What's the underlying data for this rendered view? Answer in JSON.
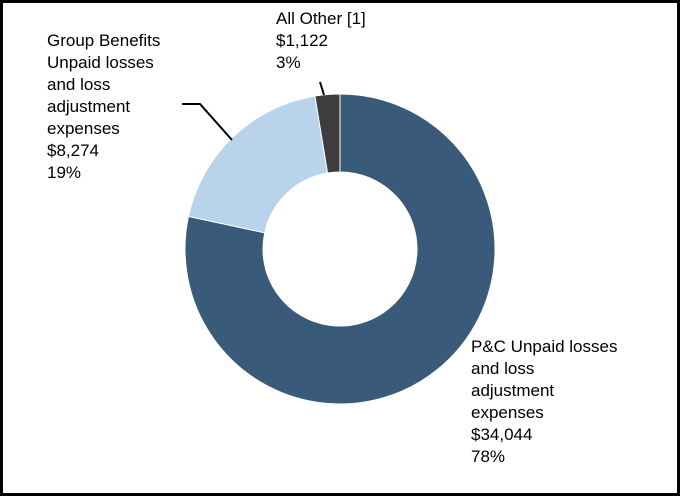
{
  "chart_data": {
    "type": "pie",
    "variant": "donut",
    "title": "",
    "slices": [
      {
        "name": "P&C Unpaid losses and loss adjustment expenses",
        "label_lines": [
          "P&C Unpaid losses",
          "and loss",
          "adjustment",
          "expenses"
        ],
        "value": 34044,
        "value_text": "$34,044",
        "percent": 78,
        "percent_text": "78%",
        "color": "#3a5a7a"
      },
      {
        "name": "Group Benefits Unpaid losses and loss adjustment expenses",
        "label_lines": [
          "Group Benefits",
          "Unpaid losses",
          "and loss",
          "adjustment",
          "expenses"
        ],
        "value": 8274,
        "value_text": "$8,274",
        "percent": 19,
        "percent_text": "19%",
        "color": "#b8d3ea"
      },
      {
        "name": "All Other [1]",
        "label_lines": [
          "All Other [1]"
        ],
        "value": 1122,
        "value_text": "$1,122",
        "percent": 3,
        "percent_text": "3%",
        "color": "#3d3d3d"
      }
    ],
    "legend": "none"
  }
}
